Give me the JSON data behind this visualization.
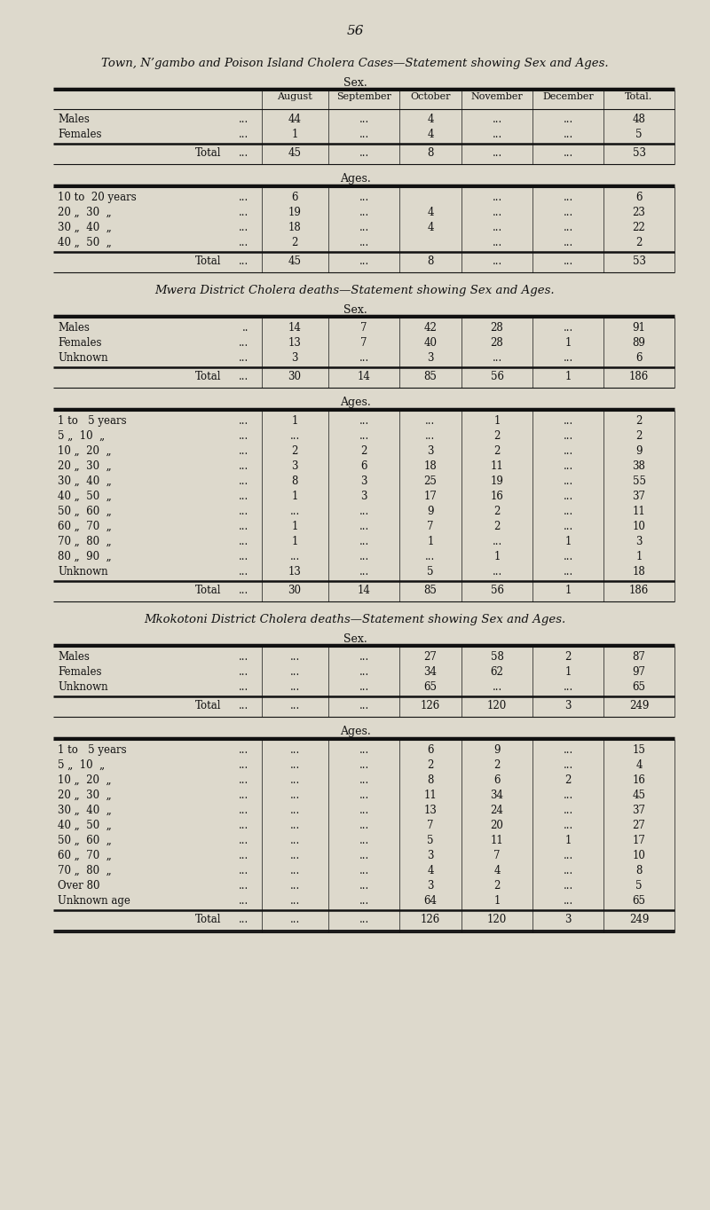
{
  "bg_color": "#ddd9cc",
  "page_number": "56",
  "title1": "Town, N’gambo and Poison Island Cholera Cases—Statement showing Sex and Ages.",
  "sex_header": "Sex.",
  "age_header": "Ages.",
  "col_headers": [
    "August",
    "September",
    "October",
    "November",
    "December",
    "Total."
  ],
  "section1_sex_rows": [
    [
      "Males",
      "...",
      "44",
      "...",
      "4",
      "...",
      "...",
      "48"
    ],
    [
      "Females",
      "...",
      "1",
      "...",
      "4",
      "...",
      "...",
      "5"
    ]
  ],
  "section1_sex_total": [
    "Total",
    "...",
    "45",
    "...",
    "8",
    "...",
    "...",
    "53"
  ],
  "section1_age_rows": [
    [
      "10 to  20 years",
      "...",
      "6",
      "...",
      "",
      "...",
      "...",
      "6"
    ],
    [
      "20 „  30  „",
      "...",
      "19",
      "...",
      "4",
      "...",
      "...",
      "23"
    ],
    [
      "30 „  40  „",
      "...",
      "18",
      "...",
      "4",
      "...",
      "...",
      "22"
    ],
    [
      "40 „  50  „",
      "...",
      "2",
      "...",
      "",
      "...",
      "...",
      "2"
    ]
  ],
  "section1_age_total": [
    "Total",
    "...",
    "45",
    "...",
    "8",
    "...",
    "...",
    "53"
  ],
  "title2": "Mwera District Cholera deaths—Statement showing Sex and Ages.",
  "section2_sex_rows": [
    [
      "Males",
      "..",
      "14",
      "7",
      "42",
      "28",
      "...",
      "91"
    ],
    [
      "Females",
      "...",
      "13",
      "7",
      "40",
      "28",
      "1",
      "89"
    ],
    [
      "Unknown",
      "...",
      "3",
      "...",
      "3",
      "...",
      "...",
      "6"
    ]
  ],
  "section2_sex_total": [
    "Total",
    "...",
    "30",
    "14",
    "85",
    "56",
    "1",
    "186"
  ],
  "section2_age_rows": [
    [
      "1 to   5 years",
      "...",
      "1",
      "...",
      "...",
      "1",
      "...",
      "2"
    ],
    [
      "5 „  10  „",
      "...",
      "...",
      "...",
      "...",
      "2",
      "...",
      "2"
    ],
    [
      "10 „  20  „",
      "...",
      "2",
      "2",
      "3",
      "2",
      "...",
      "9"
    ],
    [
      "20 „  30  „",
      "...",
      "3",
      "6",
      "18",
      "11",
      "...",
      "38"
    ],
    [
      "30 „  40  „",
      "...",
      "8",
      "3",
      "25",
      "19",
      "...",
      "55"
    ],
    [
      "40 „  50  „",
      "...",
      "1",
      "3",
      "17",
      "16",
      "...",
      "37"
    ],
    [
      "50 „  60  „",
      "...",
      "...",
      "...",
      "9",
      "2",
      "...",
      "11"
    ],
    [
      "60 „  70  „",
      "...",
      "1",
      "...",
      "7",
      "2",
      "...",
      "10"
    ],
    [
      "70 „  80  „",
      "...",
      "1",
      "...",
      "1",
      "...",
      "1",
      "3"
    ],
    [
      "80 „  90  „",
      "...",
      "...",
      "...",
      "...",
      "1",
      "...",
      "1"
    ],
    [
      "Unknown",
      "...",
      "13",
      "...",
      "5",
      "...",
      "...",
      "18"
    ]
  ],
  "section2_age_total": [
    "Total",
    "...",
    "30",
    "14",
    "85",
    "56",
    "1",
    "186"
  ],
  "title3": "Mkokotoni District Cholera deaths—Statement showing Sex and Ages.",
  "section3_sex_rows": [
    [
      "Males",
      "...",
      "...",
      "...",
      "27",
      "58",
      "2",
      "87"
    ],
    [
      "Females",
      "...",
      "...",
      "...",
      "34",
      "62",
      "1",
      "97"
    ],
    [
      "Unknown",
      "...",
      "...",
      "...",
      "65",
      "...",
      "...",
      "65"
    ]
  ],
  "section3_sex_total": [
    "Total",
    "...",
    "...",
    "...",
    "126",
    "120",
    "3",
    "249"
  ],
  "section3_age_rows": [
    [
      "1 to   5 years",
      "...",
      "...",
      "...",
      "6",
      "9",
      "...",
      "15"
    ],
    [
      "5 „  10  „",
      "...",
      "...",
      "...",
      "2",
      "2",
      "...",
      "4"
    ],
    [
      "10 „  20  „",
      "...",
      "...",
      "...",
      "8",
      "6",
      "2",
      "16"
    ],
    [
      "20 „  30  „",
      "...",
      "...",
      "...",
      "11",
      "34",
      "...",
      "45"
    ],
    [
      "30 „  40  „",
      "...",
      "...",
      "...",
      "13",
      "24",
      "...",
      "37"
    ],
    [
      "40 „  50  „",
      "...",
      "...",
      "...",
      "7",
      "20",
      "...",
      "27"
    ],
    [
      "50 „  60  „",
      "...",
      "...",
      "...",
      "5",
      "11",
      "1",
      "17"
    ],
    [
      "60 „  70  „",
      "...",
      "...",
      "...",
      "3",
      "7",
      "...",
      "10"
    ],
    [
      "70 „  80  „",
      "...",
      "...",
      "...",
      "4",
      "4",
      "...",
      "8"
    ],
    [
      "Over 80",
      "...",
      "...",
      "...",
      "3",
      "2",
      "...",
      "5"
    ],
    [
      "Unknown age",
      "...",
      "...",
      "...",
      "64",
      "1",
      "...",
      "65"
    ]
  ],
  "section3_age_total": [
    "Total",
    "...",
    "...",
    "...",
    "126",
    "120",
    "3",
    "249"
  ]
}
